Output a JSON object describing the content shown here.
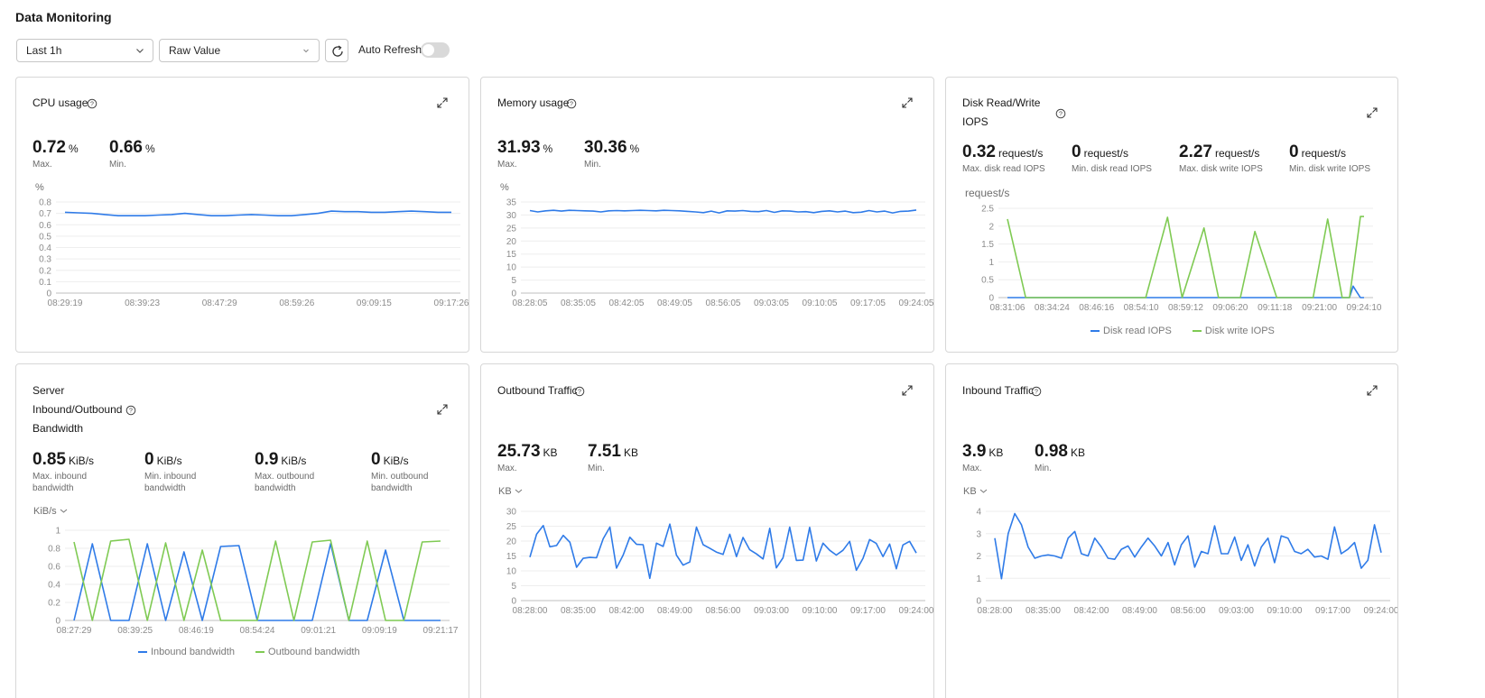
{
  "page_title": "Data Monitoring",
  "toolbar": {
    "range": "Last 1h",
    "mode": "Raw Value",
    "auto_refresh_label": "Auto Refresh",
    "auto_refresh_on": false
  },
  "colors": {
    "blue": "#2f7be8",
    "green": "#7fca53",
    "grid": "#eeeeee",
    "axis": "#bfbfbf"
  },
  "cards": {
    "cpu": {
      "title": "CPU usage",
      "metrics": [
        {
          "value": "0.72",
          "unit": "%",
          "label": "Max."
        },
        {
          "value": "0.66",
          "unit": "%",
          "label": "Min."
        }
      ],
      "y_unit": "%"
    },
    "memory": {
      "title": "Memory usage",
      "metrics": [
        {
          "value": "31.93",
          "unit": "%",
          "label": "Max."
        },
        {
          "value": "30.36",
          "unit": "%",
          "label": "Min."
        }
      ],
      "y_unit": "%"
    },
    "disk": {
      "title_line1": "Disk Read/Write",
      "title_line2": "IOPS",
      "metrics": [
        {
          "value": "0.32",
          "unit": "request/s",
          "label": "Max. disk read IOPS"
        },
        {
          "value": "0",
          "unit": "request/s",
          "label": "Min. disk read IOPS"
        },
        {
          "value": "2.27",
          "unit": "request/s",
          "label": "Max. disk write IOPS"
        },
        {
          "value": "0",
          "unit": "request/s",
          "label": "Min. disk write IOPS"
        }
      ],
      "y_unit": "request/s",
      "legend": [
        "Disk read IOPS",
        "Disk write IOPS"
      ]
    },
    "bandwidth": {
      "title_line1": "Server",
      "title_line2": "Inbound/Outbound",
      "title_line3": "Bandwidth",
      "metrics": [
        {
          "value": "0.85",
          "unit": "KiB/s",
          "label1": "Max. inbound",
          "label2": "bandwidth"
        },
        {
          "value": "0",
          "unit": "KiB/s",
          "label1": "Min. inbound",
          "label2": "bandwidth"
        },
        {
          "value": "0.9",
          "unit": "KiB/s",
          "label1": "Max. outbound",
          "label2": "bandwidth"
        },
        {
          "value": "0",
          "unit": "KiB/s",
          "label1": "Min. outbound",
          "label2": "bandwidth"
        }
      ],
      "y_unit": "KiB/s",
      "legend": [
        "Inbound bandwidth",
        "Outbound bandwidth"
      ]
    },
    "outbound": {
      "title": "Outbound Traffic",
      "metrics": [
        {
          "value": "25.73",
          "unit": "KB",
          "label": "Max."
        },
        {
          "value": "7.51",
          "unit": "KB",
          "label": "Min."
        }
      ],
      "y_unit": "KB"
    },
    "inbound": {
      "title": "Inbound Traffic",
      "metrics": [
        {
          "value": "3.9",
          "unit": "KB",
          "label": "Max."
        },
        {
          "value": "0.98",
          "unit": "KB",
          "label": "Min."
        }
      ],
      "y_unit": "KB"
    }
  },
  "chart_data": [
    {
      "id": "cpu",
      "type": "line",
      "ylim": [
        0,
        0.8
      ],
      "yticks": [
        "0",
        "0.1",
        "0.2",
        "0.3",
        "0.4",
        "0.5",
        "0.6",
        "0.7",
        "0.8"
      ],
      "xticks": [
        "08:29:19",
        "08:39:23",
        "08:47:29",
        "08:59:26",
        "09:09:15",
        "09:17:26"
      ],
      "series": [
        {
          "values": [
            0.71,
            0.705,
            0.7,
            0.69,
            0.68,
            0.68,
            0.68,
            0.685,
            0.69,
            0.7,
            0.69,
            0.68,
            0.68,
            0.685,
            0.69,
            0.685,
            0.68,
            0.68,
            0.69,
            0.7,
            0.72,
            0.715,
            0.715,
            0.71,
            0.71,
            0.715,
            0.72,
            0.715,
            0.71,
            0.71
          ]
        }
      ]
    },
    {
      "id": "memory",
      "type": "line",
      "ylim": [
        0,
        35
      ],
      "yticks": [
        "0",
        "5",
        "10",
        "15",
        "20",
        "25",
        "30",
        "35"
      ],
      "xticks": [
        "08:28:05",
        "08:35:05",
        "08:42:05",
        "08:49:05",
        "08:56:05",
        "09:03:05",
        "09:10:05",
        "09:17:05",
        "09:24:05"
      ],
      "series": [
        {
          "values": [
            31.7,
            31.2,
            31.6,
            31.8,
            31.5,
            31.8,
            31.7,
            31.6,
            31.5,
            31.2,
            31.6,
            31.7,
            31.6,
            31.7,
            31.8,
            31.7,
            31.6,
            31.8,
            31.7,
            31.6,
            31.4,
            31.2,
            30.9,
            31.5,
            30.8,
            31.6,
            31.5,
            31.7,
            31.4,
            31.3,
            31.7,
            31.0,
            31.6,
            31.5,
            31.2,
            31.3,
            30.9,
            31.4,
            31.6,
            31.2,
            31.5,
            30.9,
            31.1,
            31.7,
            31.2,
            31.5,
            30.8,
            31.4,
            31.5,
            31.9
          ]
        }
      ]
    },
    {
      "id": "disk",
      "type": "line",
      "ylim": [
        0,
        2.5
      ],
      "yticks": [
        "0",
        "0.5",
        "1",
        "1.5",
        "2",
        "2.5"
      ],
      "xticks": [
        "08:31:06",
        "08:34:24",
        "08:46:16",
        "08:54:10",
        "08:59:12",
        "09:06:20",
        "09:11:18",
        "09:21:00",
        "09:24:10"
      ],
      "series": [
        {
          "name": "Disk read IOPS",
          "color": "blue",
          "x": [
            0,
            38,
            39,
            40,
            42,
            43,
            44,
            45,
            46,
            47,
            48,
            49,
            50,
            54,
            55,
            56,
            57,
            58,
            59,
            60,
            61,
            62,
            63,
            64,
            65,
            70,
            71,
            72,
            73,
            74,
            75,
            76,
            77,
            78,
            79,
            80,
            81,
            82,
            83,
            84,
            85,
            86,
            87,
            88,
            89,
            90,
            91,
            92,
            93,
            94,
            95,
            96,
            97,
            98
          ],
          "values": [
            0,
            0,
            0,
            0,
            0,
            0,
            0,
            0,
            0,
            0,
            0,
            0,
            0,
            0,
            0,
            0,
            0,
            0,
            0,
            0,
            0,
            0,
            0,
            0,
            0,
            0,
            0,
            0,
            0,
            0,
            0,
            0,
            0,
            0,
            0,
            0,
            0,
            0,
            0,
            0,
            0,
            0,
            0,
            0,
            0,
            0,
            0,
            0,
            0,
            0,
            0.32,
            0.16,
            0,
            0
          ]
        },
        {
          "name": "Disk write IOPS",
          "color": "green",
          "x": [
            0,
            5,
            28,
            33,
            38,
            44,
            48,
            54,
            58,
            64,
            68,
            74,
            78,
            84,
            88,
            92,
            94,
            97,
            98
          ],
          "values": [
            2.2,
            0,
            0,
            0,
            0,
            2.25,
            0,
            1.95,
            0,
            0,
            1.85,
            0,
            0,
            0,
            2.2,
            0,
            0,
            2.27,
            2.27
          ]
        }
      ]
    },
    {
      "id": "bandwidth",
      "type": "line",
      "ylim": [
        0,
        1
      ],
      "yticks": [
        "0",
        "0.2",
        "0.4",
        "0.6",
        "0.8",
        "1"
      ],
      "xticks": [
        "08:27:29",
        "08:39:25",
        "08:46:19",
        "08:54:24",
        "09:01:21",
        "09:09:19",
        "09:21:17"
      ],
      "series": [
        {
          "name": "Inbound bandwidth",
          "color": "blue",
          "values": [
            0,
            0.85,
            0,
            0,
            0.85,
            0,
            0.76,
            0,
            0.82,
            0.83,
            0,
            0,
            0,
            0,
            0.85,
            0,
            0,
            0.78,
            0,
            0,
            0
          ]
        },
        {
          "name": "Outbound bandwidth",
          "color": "green",
          "values": [
            0.87,
            0,
            0.88,
            0.9,
            0,
            0.86,
            0,
            0.78,
            0,
            0,
            0,
            0.88,
            0,
            0.87,
            0.89,
            0,
            0.88,
            0,
            0,
            0.87,
            0.88
          ]
        }
      ]
    },
    {
      "id": "outbound",
      "type": "line",
      "ylim": [
        0,
        30
      ],
      "yticks": [
        "0",
        "5",
        "10",
        "15",
        "20",
        "25",
        "30"
      ],
      "xticks": [
        "08:28:00",
        "08:35:00",
        "08:42:00",
        "08:49:00",
        "08:56:00",
        "09:03:00",
        "09:10:00",
        "09:17:00",
        "09:24:00"
      ],
      "series": [
        {
          "values": [
            14.6,
            22.3,
            25.2,
            18.1,
            18.5,
            21.9,
            19.6,
            11.2,
            14.2,
            14.5,
            14.4,
            20.8,
            24.7,
            10.9,
            15.3,
            21.3,
            18.9,
            18.8,
            7.5,
            19.3,
            18.2,
            25.7,
            15.3,
            11.9,
            13.0,
            24.7,
            18.8,
            17.6,
            16.3,
            15.5,
            22.3,
            14.8,
            21.2,
            17.1,
            15.7,
            14.0,
            24.3,
            11.0,
            14.4,
            24.7,
            13.5,
            13.6,
            24.6,
            13.3,
            19.3,
            16.9,
            15.3,
            16.9,
            19.9,
            10.2,
            14.2,
            20.5,
            19.2,
            14.8,
            19.0,
            10.7,
            18.7,
            19.9,
            16.0
          ]
        }
      ]
    },
    {
      "id": "inbound",
      "type": "line",
      "ylim": [
        0,
        4
      ],
      "yticks": [
        "0",
        "1",
        "2",
        "3",
        "4"
      ],
      "xticks": [
        "08:28:00",
        "08:35:00",
        "08:42:00",
        "08:49:00",
        "08:56:00",
        "09:03:00",
        "09:10:00",
        "09:17:00",
        "09:24:00"
      ],
      "series": [
        {
          "values": [
            2.8,
            0.98,
            3.0,
            3.9,
            3.4,
            2.4,
            1.9,
            2.0,
            2.05,
            2.0,
            1.9,
            2.8,
            3.1,
            2.1,
            2.0,
            2.8,
            2.4,
            1.9,
            1.85,
            2.3,
            2.45,
            1.95,
            2.4,
            2.8,
            2.45,
            2.0,
            2.6,
            1.6,
            2.5,
            2.9,
            1.5,
            2.2,
            2.1,
            3.35,
            2.1,
            2.1,
            2.85,
            1.8,
            2.5,
            1.55,
            2.4,
            2.8,
            1.7,
            2.9,
            2.8,
            2.2,
            2.1,
            2.3,
            1.95,
            2.0,
            1.85,
            3.3,
            2.1,
            2.3,
            2.6,
            1.45,
            1.8,
            3.4,
            2.15
          ]
        }
      ]
    }
  ]
}
